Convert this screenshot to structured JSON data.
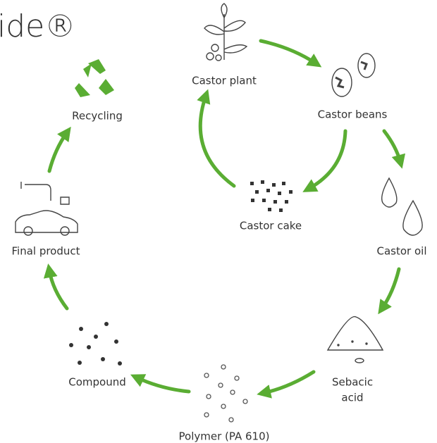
{
  "title": "ide®",
  "nodes": [
    {
      "label": "Castor plant"
    },
    {
      "label": "Castor beans"
    },
    {
      "label": "Castor oil"
    },
    {
      "label": [
        "Sebacic",
        "acid"
      ]
    },
    {
      "label": "Polymer (PA 610)"
    },
    {
      "label": "Compound"
    },
    {
      "label": "Final product"
    },
    {
      "label": "Recycling"
    },
    {
      "label": "Castor cake"
    }
  ]
}
